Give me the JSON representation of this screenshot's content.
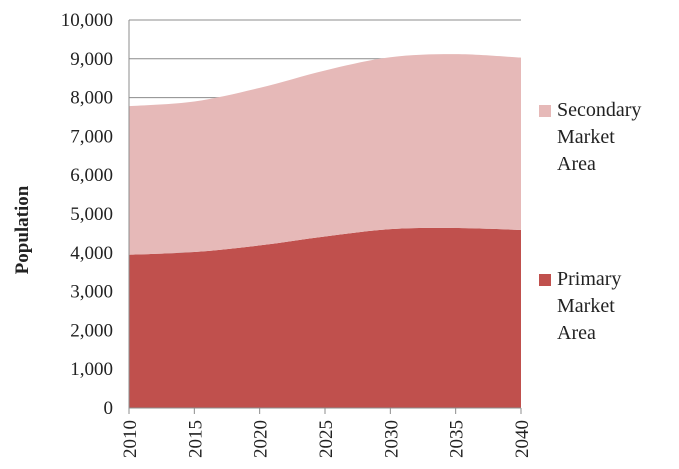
{
  "chart_data": {
    "type": "area",
    "stacked": true,
    "title": "",
    "xlabel": "",
    "ylabel": "Population",
    "x": [
      "2010",
      "2015",
      "2020",
      "2025",
      "2030",
      "2035",
      "2040"
    ],
    "ylim": [
      0,
      10000
    ],
    "yticks": [
      0,
      1000,
      2000,
      3000,
      4000,
      5000,
      6000,
      7000,
      8000,
      9000,
      10000
    ],
    "ytick_labels": [
      "0",
      "1,000",
      "2,000",
      "3,000",
      "4,000",
      "5,000",
      "6,000",
      "7,000",
      "8,000",
      "9,000",
      "10,000"
    ],
    "grid": true,
    "legend_position": "right",
    "series": [
      {
        "name": "Primary Market Area",
        "legend_lines": [
          "Primary",
          "Market",
          "Area"
        ],
        "color": "#c0504d",
        "values": [
          3950,
          4020,
          4190,
          4420,
          4610,
          4640,
          4590
        ]
      },
      {
        "name": "Secondary Market Area",
        "legend_lines": [
          "Secondary",
          "Market",
          "Area"
        ],
        "color": "#e6b9b8",
        "values": [
          3830,
          3880,
          4060,
          4280,
          4430,
          4480,
          4440
        ]
      }
    ]
  }
}
